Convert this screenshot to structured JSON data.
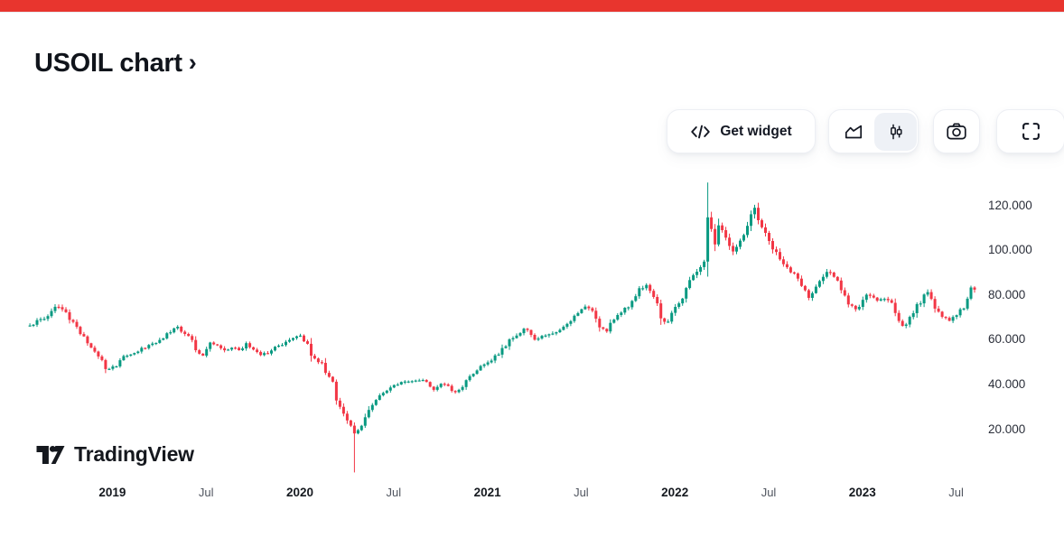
{
  "page": {
    "accent_bar_color": "#e8352e",
    "background": "#ffffff"
  },
  "header": {
    "title": "USOIL chart",
    "chevron": "›"
  },
  "toolbar": {
    "get_widget": {
      "label": "Get widget",
      "icon": "code-icon"
    },
    "chart_type": {
      "options": [
        {
          "id": "area",
          "icon": "area-chart-icon",
          "selected": false
        },
        {
          "id": "candles",
          "icon": "candlestick-icon",
          "selected": true
        }
      ]
    },
    "snapshot": {
      "icon": "camera-icon"
    },
    "fullscreen": {
      "icon": "fullscreen-icon"
    }
  },
  "watermark": {
    "brand": "TradingView"
  },
  "chart_data": {
    "type": "candlestick",
    "symbol": "USOIL",
    "interval": "weekly",
    "up_color": "#089981",
    "down_color": "#f23645",
    "grid": false,
    "y_axis": {
      "side": "right",
      "labels": [
        "120.000",
        "100.000",
        "80.000",
        "60.000",
        "40.000",
        "20.000"
      ],
      "values": [
        120,
        100,
        80,
        60,
        40,
        20
      ]
    },
    "x_axis": {
      "labels": [
        {
          "text": "2019",
          "t": 2019.0,
          "major": true
        },
        {
          "text": "Jul",
          "t": 2019.5,
          "major": false
        },
        {
          "text": "2020",
          "t": 2020.0,
          "major": true
        },
        {
          "text": "Jul",
          "t": 2020.5,
          "major": false
        },
        {
          "text": "2021",
          "t": 2021.0,
          "major": true
        },
        {
          "text": "Jul",
          "t": 2021.5,
          "major": false
        },
        {
          "text": "2022",
          "t": 2022.0,
          "major": true
        },
        {
          "text": "Jul",
          "t": 2022.5,
          "major": false
        },
        {
          "text": "2023",
          "t": 2023.0,
          "major": true
        },
        {
          "text": "Jul",
          "t": 2023.5,
          "major": false
        }
      ]
    },
    "t_start": 2018.56,
    "t_end": 2023.6,
    "weekly_close_anchors": [
      [
        2018.56,
        66
      ],
      [
        2018.62,
        69
      ],
      [
        2018.66,
        71
      ],
      [
        2018.7,
        75
      ],
      [
        2018.74,
        73
      ],
      [
        2018.79,
        67
      ],
      [
        2018.83,
        63
      ],
      [
        2018.88,
        57
      ],
      [
        2018.93,
        52
      ],
      [
        2018.97,
        46
      ],
      [
        2019.02,
        48
      ],
      [
        2019.06,
        52
      ],
      [
        2019.12,
        54
      ],
      [
        2019.17,
        56
      ],
      [
        2019.22,
        58
      ],
      [
        2019.27,
        61
      ],
      [
        2019.31,
        63
      ],
      [
        2019.34,
        66
      ],
      [
        2019.38,
        63
      ],
      [
        2019.42,
        60
      ],
      [
        2019.45,
        54
      ],
      [
        2019.48,
        53
      ],
      [
        2019.52,
        58
      ],
      [
        2019.56,
        57
      ],
      [
        2019.6,
        55
      ],
      [
        2019.64,
        56
      ],
      [
        2019.68,
        55
      ],
      [
        2019.71,
        58
      ],
      [
        2019.75,
        55
      ],
      [
        2019.79,
        53
      ],
      [
        2019.83,
        54
      ],
      [
        2019.87,
        57
      ],
      [
        2019.91,
        58
      ],
      [
        2019.95,
        60
      ],
      [
        2019.99,
        62
      ],
      [
        2020.03,
        59
      ],
      [
        2020.07,
        51
      ],
      [
        2020.11,
        50
      ],
      [
        2020.14,
        45
      ],
      [
        2020.17,
        42
      ],
      [
        2020.2,
        32
      ],
      [
        2020.23,
        27
      ],
      [
        2020.26,
        23
      ],
      [
        2020.29,
        18
      ],
      [
        2020.32,
        20
      ],
      [
        2020.35,
        25
      ],
      [
        2020.38,
        30
      ],
      [
        2020.41,
        33
      ],
      [
        2020.44,
        36
      ],
      [
        2020.48,
        38
      ],
      [
        2020.52,
        40
      ],
      [
        2020.56,
        41
      ],
      [
        2020.6,
        41
      ],
      [
        2020.64,
        42
      ],
      [
        2020.68,
        41
      ],
      [
        2020.71,
        37
      ],
      [
        2020.75,
        40
      ],
      [
        2020.79,
        39
      ],
      [
        2020.82,
        36
      ],
      [
        2020.86,
        38
      ],
      [
        2020.89,
        42
      ],
      [
        2020.93,
        45
      ],
      [
        2020.97,
        48
      ],
      [
        2021.01,
        50
      ],
      [
        2021.05,
        53
      ],
      [
        2021.09,
        57
      ],
      [
        2021.13,
        60
      ],
      [
        2021.17,
        63
      ],
      [
        2021.2,
        65
      ],
      [
        2021.23,
        62
      ],
      [
        2021.26,
        60
      ],
      [
        2021.3,
        61
      ],
      [
        2021.34,
        63
      ],
      [
        2021.38,
        64
      ],
      [
        2021.42,
        66
      ],
      [
        2021.46,
        70
      ],
      [
        2021.5,
        73
      ],
      [
        2021.53,
        74
      ],
      [
        2021.56,
        72
      ],
      [
        2021.6,
        66
      ],
      [
        2021.63,
        63
      ],
      [
        2021.66,
        67
      ],
      [
        2021.7,
        71
      ],
      [
        2021.74,
        74
      ],
      [
        2021.78,
        78
      ],
      [
        2021.81,
        82
      ],
      [
        2021.84,
        84
      ],
      [
        2021.87,
        81
      ],
      [
        2021.9,
        76
      ],
      [
        2021.93,
        69
      ],
      [
        2021.96,
        68
      ],
      [
        2022.0,
        74
      ],
      [
        2022.04,
        79
      ],
      [
        2022.08,
        86
      ],
      [
        2022.12,
        90
      ],
      [
        2022.15,
        92
      ],
      [
        2022.18,
        115
      ],
      [
        2022.21,
        103
      ],
      [
        2022.24,
        112
      ],
      [
        2022.27,
        106
      ],
      [
        2022.31,
        99
      ],
      [
        2022.35,
        103
      ],
      [
        2022.38,
        110
      ],
      [
        2022.42,
        118
      ],
      [
        2022.45,
        113
      ],
      [
        2022.49,
        106
      ],
      [
        2022.53,
        100
      ],
      [
        2022.57,
        95
      ],
      [
        2022.61,
        91
      ],
      [
        2022.64,
        89
      ],
      [
        2022.68,
        84
      ],
      [
        2022.72,
        79
      ],
      [
        2022.75,
        83
      ],
      [
        2022.79,
        88
      ],
      [
        2022.82,
        91
      ],
      [
        2022.86,
        86
      ],
      [
        2022.9,
        81
      ],
      [
        2022.93,
        75
      ],
      [
        2022.97,
        73
      ],
      [
        2023.0,
        78
      ],
      [
        2023.04,
        80
      ],
      [
        2023.08,
        77
      ],
      [
        2023.12,
        78
      ],
      [
        2023.16,
        76
      ],
      [
        2023.19,
        69
      ],
      [
        2023.22,
        66
      ],
      [
        2023.26,
        70
      ],
      [
        2023.3,
        76
      ],
      [
        2023.34,
        81
      ],
      [
        2023.37,
        78
      ],
      [
        2023.4,
        72
      ],
      [
        2023.44,
        69
      ],
      [
        2023.47,
        68
      ],
      [
        2023.5,
        71
      ],
      [
        2023.53,
        73
      ],
      [
        2023.56,
        78
      ],
      [
        2023.58,
        83.2
      ],
      [
        2023.6,
        82.8
      ]
    ],
    "special_wicks": [
      {
        "t": 2020.29,
        "low": 0.5
      },
      {
        "t": 2022.18,
        "high": 130
      }
    ]
  }
}
